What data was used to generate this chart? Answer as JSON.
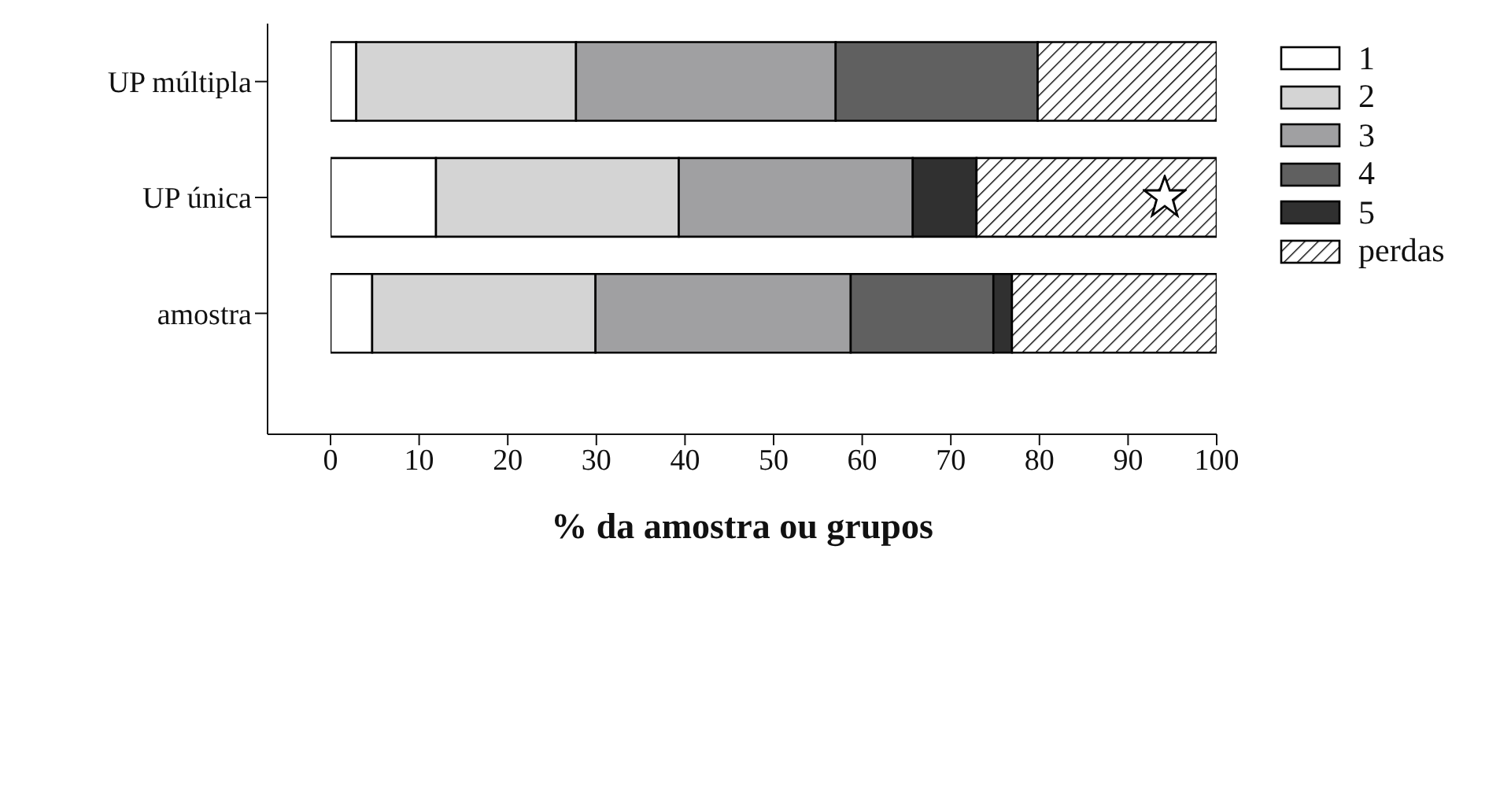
{
  "chart_data": {
    "type": "bar",
    "orientation": "horizontal",
    "stacked": true,
    "xlabel": "% da amostra ou grupos",
    "categories": [
      "UP múltipla",
      "UP única",
      "amostra"
    ],
    "series": [
      {
        "name": "1",
        "color": "#ffffff",
        "values": [
          2.9,
          11.9,
          4.7
        ]
      },
      {
        "name": "2",
        "color": "#d4d4d4",
        "values": [
          24.8,
          27.4,
          25.2
        ]
      },
      {
        "name": "3",
        "color": "#a0a0a2",
        "values": [
          29.3,
          26.4,
          28.8
        ]
      },
      {
        "name": "4",
        "color": "#606060",
        "values": [
          22.8,
          0,
          16.1
        ]
      },
      {
        "name": "5",
        "color": "#303030",
        "values": [
          0,
          7.2,
          2.1
        ]
      },
      {
        "name": "perdas",
        "color": "#000000",
        "values": [
          20.2,
          27.1,
          23.1
        ]
      }
    ],
    "xlim": [
      0,
      100
    ],
    "xticks": [
      0,
      10,
      20,
      30,
      40,
      50,
      60,
      70,
      80,
      90,
      100
    ],
    "legend": "top right"
  }
}
